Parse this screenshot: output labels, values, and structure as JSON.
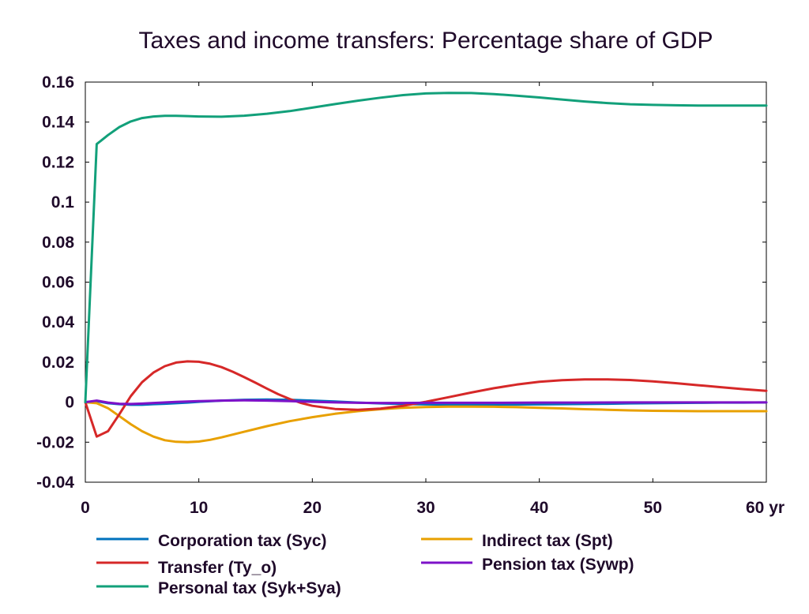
{
  "chart_data": {
    "type": "line",
    "title": "Taxes and income transfers: Percentage share of GDP",
    "xlabel": "",
    "ylabel": "",
    "xlim": [
      0,
      60
    ],
    "ylim": [
      -0.04,
      0.16
    ],
    "x_ticks": [
      0,
      10,
      20,
      30,
      40,
      50,
      60
    ],
    "x_tick_labels": [
      "0",
      "10",
      "20",
      "30",
      "40",
      "50",
      "60 yr"
    ],
    "y_ticks": [
      -0.04,
      -0.02,
      0,
      0.02,
      0.04,
      0.06,
      0.08,
      0.1,
      0.12,
      0.14,
      0.16
    ],
    "y_tick_labels": [
      "-0.04",
      "-0.02",
      "0",
      "0.02",
      "0.04",
      "0.06",
      "0.08",
      "0.1",
      "0.12",
      "0.14",
      "0.16"
    ],
    "grid": false,
    "legend_position": "bottom",
    "series": [
      {
        "name": "Corporation tax (Syc)",
        "color": "#0072bd",
        "x": [
          0,
          1,
          2,
          3,
          4,
          5,
          6,
          7,
          8,
          9,
          10,
          12,
          14,
          16,
          18,
          20,
          22,
          24,
          26,
          28,
          30,
          32,
          34,
          36,
          38,
          40,
          42,
          44,
          46,
          48,
          50,
          52,
          54,
          56,
          58,
          60
        ],
        "y": [
          0,
          0.0005,
          -0.0005,
          -0.001,
          -0.0013,
          -0.0013,
          -0.001,
          -0.0008,
          -0.0005,
          -0.0002,
          0.0002,
          0.0008,
          0.0012,
          0.0013,
          0.0012,
          0.0008,
          0.0003,
          -0.0002,
          -0.0006,
          -0.0009,
          -0.0011,
          -0.0012,
          -0.0012,
          -0.0012,
          -0.0012,
          -0.0011,
          -0.001,
          -0.0009,
          -0.0008,
          -0.0006,
          -0.0005,
          -0.0004,
          -0.0003,
          -0.0002,
          -0.0002,
          -0.0001
        ]
      },
      {
        "name": "Indirect tax (Spt)",
        "color": "#e8a000",
        "x": [
          0,
          1,
          2,
          3,
          4,
          5,
          6,
          7,
          8,
          9,
          10,
          11,
          12,
          14,
          16,
          18,
          20,
          22,
          24,
          26,
          28,
          30,
          32,
          34,
          36,
          38,
          40,
          42,
          44,
          46,
          48,
          50,
          52,
          54,
          56,
          58,
          60
        ],
        "y": [
          0,
          -0.0005,
          -0.003,
          -0.007,
          -0.011,
          -0.0145,
          -0.0172,
          -0.019,
          -0.0198,
          -0.02,
          -0.0197,
          -0.0188,
          -0.0176,
          -0.0148,
          -0.012,
          -0.0095,
          -0.0075,
          -0.0058,
          -0.0045,
          -0.0035,
          -0.0028,
          -0.0024,
          -0.0022,
          -0.0022,
          -0.0023,
          -0.0025,
          -0.0028,
          -0.0031,
          -0.0035,
          -0.0038,
          -0.0041,
          -0.0043,
          -0.0044,
          -0.0045,
          -0.0045,
          -0.0045,
          -0.0045
        ]
      },
      {
        "name": "Transfer (Ty_o)",
        "color": "#d62828",
        "x": [
          0,
          1,
          2,
          3,
          4,
          5,
          6,
          7,
          8,
          9,
          10,
          11,
          12,
          13,
          14,
          15,
          16,
          17,
          18,
          19,
          20,
          22,
          24,
          26,
          28,
          30,
          32,
          34,
          36,
          38,
          40,
          42,
          44,
          46,
          48,
          50,
          52,
          54,
          56,
          58,
          60
        ],
        "y": [
          0,
          -0.0172,
          -0.0145,
          -0.006,
          0.003,
          0.01,
          0.0148,
          0.018,
          0.0198,
          0.0204,
          0.0202,
          0.0192,
          0.0175,
          0.0152,
          0.0125,
          0.0097,
          0.0068,
          0.004,
          0.0016,
          -0.0004,
          -0.0018,
          -0.0034,
          -0.0038,
          -0.0032,
          -0.0018,
          0.0002,
          0.0025,
          0.0048,
          0.007,
          0.0088,
          0.0102,
          0.011,
          0.0114,
          0.0114,
          0.0111,
          0.0104,
          0.0095,
          0.0085,
          0.0075,
          0.0065,
          0.0057
        ]
      },
      {
        "name": "Pension tax (Sywp)",
        "color": "#7d12c8",
        "x": [
          0,
          1,
          2,
          3,
          4,
          5,
          6,
          8,
          10,
          12,
          14,
          16,
          18,
          20,
          22,
          24,
          26,
          28,
          30,
          32,
          34,
          36,
          40,
          44,
          48,
          52,
          56,
          60
        ],
        "y": [
          0,
          0.0008,
          -0.0002,
          -0.0008,
          -0.0009,
          -0.0007,
          -0.0004,
          0.0001,
          0.0005,
          0.0008,
          0.0009,
          0.0008,
          0.0005,
          0.0002,
          -0.0001,
          -0.0003,
          -0.0004,
          -0.0004,
          -0.0003,
          -0.0003,
          -0.0003,
          -0.0003,
          -0.0002,
          -0.0002,
          -0.0001,
          -0.0001,
          -0.0001,
          -0.0001
        ]
      },
      {
        "name": "Personal tax (Syk+Sya)",
        "color": "#12a07a",
        "x": [
          0,
          1,
          2,
          3,
          4,
          5,
          6,
          7,
          8,
          9,
          10,
          12,
          14,
          16,
          18,
          20,
          22,
          24,
          26,
          28,
          30,
          32,
          34,
          36,
          38,
          40,
          42,
          44,
          46,
          48,
          50,
          52,
          54,
          56,
          58,
          60
        ],
        "y": [
          0,
          0.129,
          0.1335,
          0.1375,
          0.1403,
          0.142,
          0.1428,
          0.1431,
          0.1431,
          0.143,
          0.1428,
          0.1427,
          0.1432,
          0.1442,
          0.1455,
          0.1472,
          0.149,
          0.1507,
          0.1522,
          0.1535,
          0.1543,
          0.1546,
          0.1545,
          0.154,
          0.1532,
          0.1523,
          0.1513,
          0.1503,
          0.1495,
          0.1489,
          0.1486,
          0.1484,
          0.1483,
          0.1483,
          0.1483,
          0.1483
        ]
      }
    ]
  }
}
